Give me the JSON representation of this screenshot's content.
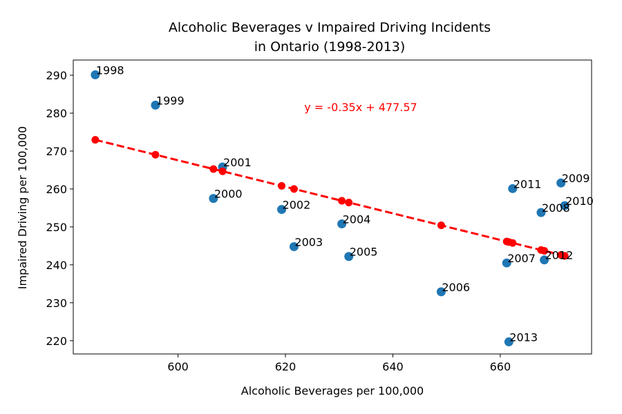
{
  "chart_data": {
    "type": "scatter",
    "title_line1": "Alcoholic Beverages v Impaired Driving Incidents",
    "title_line2": "in Ontario (1998-2013)",
    "xlabel": "Alcoholic Beverages per 100,000",
    "ylabel": "Impaired Driving per 100,000",
    "xlim": [
      580.5,
      677
    ],
    "ylim": [
      216.5,
      294
    ],
    "x_ticks": [
      600,
      620,
      640,
      660
    ],
    "y_ticks": [
      220,
      230,
      240,
      250,
      260,
      270,
      280,
      290
    ],
    "grid": false,
    "series": [
      {
        "labels": [
          "1998",
          "1999",
          "2000",
          "2001",
          "2002",
          "2003",
          "2004",
          "2005",
          "2006",
          "2007",
          "2008",
          "2009",
          "2010",
          "2011",
          "2012",
          "2013"
        ],
        "x": [
          584.6,
          595.8,
          606.6,
          608.3,
          619.3,
          621.6,
          630.5,
          631.8,
          649.0,
          661.2,
          667.6,
          671.3,
          672.0,
          662.3,
          668.2,
          661.6
        ],
        "y": [
          290.1,
          282.1,
          257.5,
          265.8,
          254.6,
          244.8,
          250.8,
          242.2,
          232.9,
          240.5,
          253.8,
          261.6,
          255.6,
          260.1,
          241.3,
          219.7
        ],
        "color": "#1f77b4"
      }
    ],
    "trendline": {
      "slope": -0.35,
      "intercept": 477.57,
      "equation": "y = -0.35x + 477.57",
      "color": "#ff0000",
      "style": "dashed with point markers"
    }
  }
}
